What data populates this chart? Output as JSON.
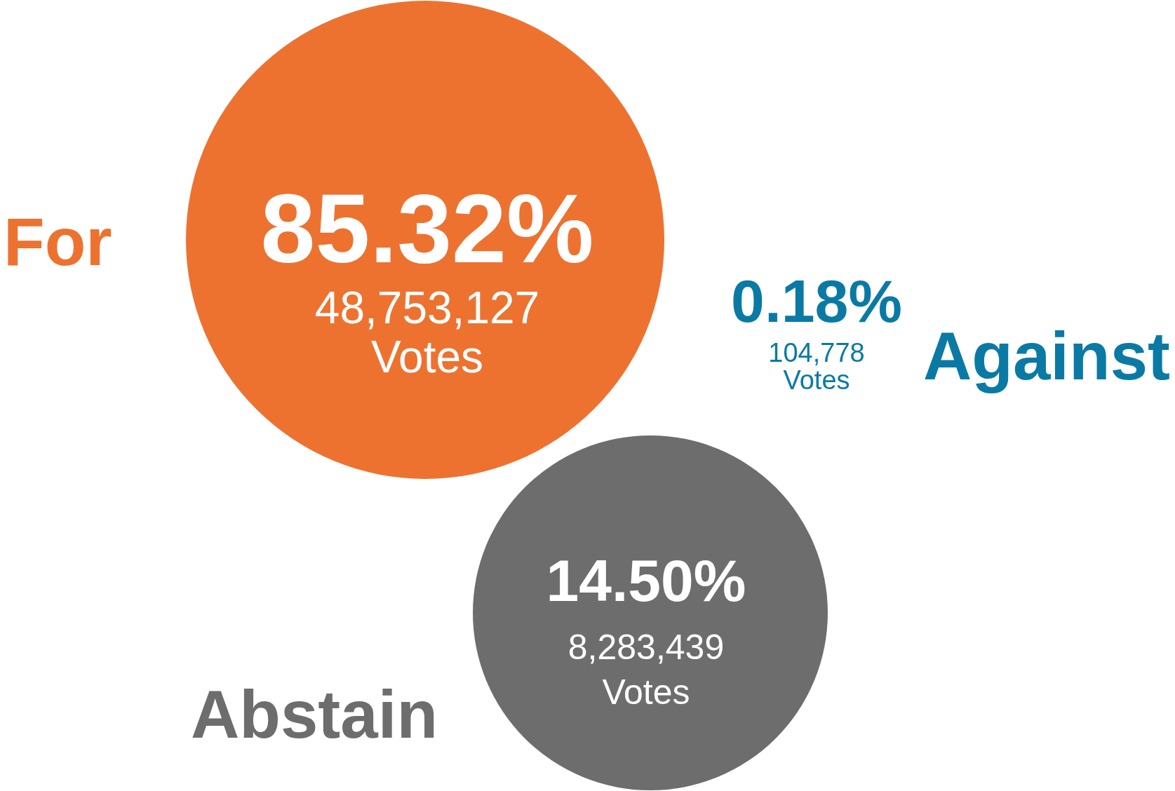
{
  "chart_data": {
    "type": "other",
    "categories": [
      "For",
      "Against",
      "Abstain"
    ],
    "series": [
      {
        "colors": [
          "#ed7230",
          "#0a7aa5",
          "#6d6d6d"
        ],
        "values": [
          85.32,
          0.18,
          14.5
        ],
        "value_labels": [
          "85.32%",
          "0.18%",
          "14.50%"
        ]
      },
      {
        "values": [
          48753127,
          104778,
          8283439
        ],
        "value_labels": [
          "48,753,127\nVotes",
          "104,778\nVotes",
          "8,283,439\nVotes"
        ]
      }
    ]
  }
}
